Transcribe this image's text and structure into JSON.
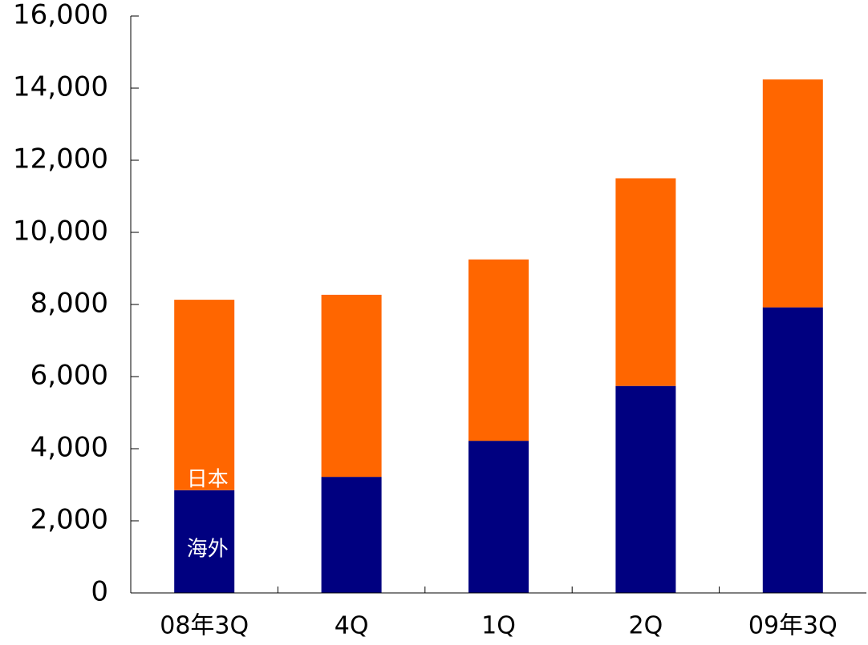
{
  "chart_data": {
    "type": "bar",
    "stacked": true,
    "categories": [
      "08年3Q",
      "4Q",
      "1Q",
      "2Q",
      "09年3Q"
    ],
    "series": [
      {
        "name": "海外",
        "color": "#000080",
        "values": [
          2850,
          3220,
          4220,
          5740,
          7920
        ]
      },
      {
        "name": "日本",
        "color": "#ff6600",
        "values": [
          5280,
          5050,
          5030,
          5760,
          6320
        ]
      }
    ],
    "title": "",
    "xlabel": "",
    "ylabel": "",
    "ylim": [
      0,
      16000
    ],
    "yticks": [
      0,
      2000,
      4000,
      6000,
      8000,
      10000,
      12000,
      14000,
      16000
    ],
    "ytick_labels": [
      "0",
      "2,000",
      "4,000",
      "6,000",
      "8,000",
      "10,000",
      "12,000",
      "14,000",
      "16,000"
    ],
    "grid": false,
    "legend": "series names written inside first bar"
  }
}
